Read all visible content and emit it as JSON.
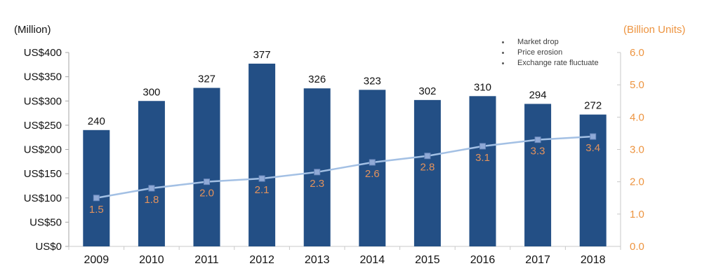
{
  "axis_titles": {
    "left": "(Million)",
    "right": "(Billion Units)"
  },
  "chart_data": {
    "type": "combo",
    "title": "",
    "categories": [
      "2009",
      "2010",
      "2011",
      "2012",
      "2013",
      "2014",
      "2015",
      "2016",
      "2017",
      "2018"
    ],
    "series": [
      {
        "type": "bar",
        "axis": "left",
        "values": [
          240,
          300,
          327,
          377,
          326,
          323,
          302,
          310,
          294,
          272
        ],
        "labels": [
          "240",
          "300",
          "327",
          "377",
          "326",
          "323",
          "302",
          "310",
          "294",
          "272"
        ]
      },
      {
        "type": "line",
        "axis": "right",
        "values": [
          1.5,
          1.8,
          2.0,
          2.1,
          2.3,
          2.6,
          2.8,
          3.1,
          3.3,
          3.4
        ],
        "labels": [
          "1.5",
          "1.8",
          "2.0",
          "2.1",
          "2.3",
          "2.6",
          "2.8",
          "3.1",
          "3.3",
          "3.4"
        ]
      }
    ],
    "left_axis": {
      "title": "(Million)",
      "tick_labels": [
        "US$400",
        "US$350",
        "US$300",
        "US$250",
        "US$200",
        "US$150",
        "US$100",
        "US$50",
        "US$0"
      ],
      "min": 0,
      "max": 400
    },
    "right_axis": {
      "title": "(Billion Units)",
      "tick_labels": [
        "6.0",
        "5.0",
        "4.0",
        "3.0",
        "2.0",
        "1.0",
        "0.0"
      ],
      "min": 0,
      "max": 6
    },
    "annotations": [
      "Market drop",
      "Price erosion",
      "Exchange rate fluctuate"
    ],
    "grid": false,
    "legend": "none"
  },
  "colors": {
    "bar": "#234F85",
    "line": "#A3C0E4",
    "marker": "#8FA9D6",
    "marker_border": "#6B89BD",
    "orange_axis": "#ED9440",
    "orange_label": "#E3925C",
    "text_dark": "#111111",
    "annotation_text": "#3F3F3F",
    "axis_left": "#A6A6A6",
    "axis_light": "#C9C9C9"
  }
}
